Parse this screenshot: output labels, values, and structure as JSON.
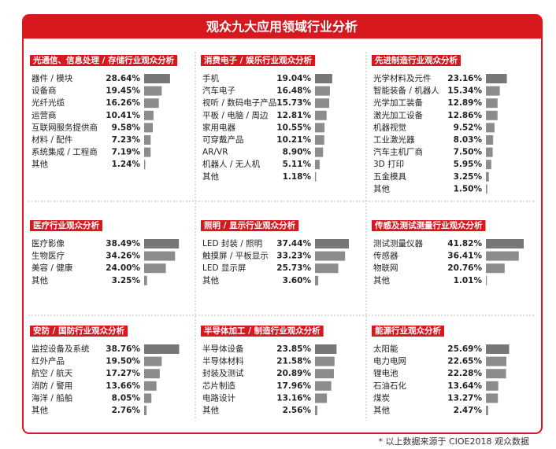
{
  "title": "观众九大应用领域行业分析",
  "note": "* 以上数据来源于 CIOE2018 观众数据",
  "chart_data": [
    {
      "type": "bar",
      "title": "光通信、信息处理 / 存储行业观众分析",
      "color": "#8c8c8c",
      "categories": [
        "器件 / 模块",
        "设备商",
        "光纤光缆",
        "运营商",
        "互联网服务提供商",
        "材料 / 配件",
        "系统集成 / 工程商",
        "其他"
      ],
      "values": [
        28.64,
        19.45,
        16.26,
        10.41,
        9.58,
        7.23,
        7.19,
        1.24
      ],
      "value_labels": [
        "28.64%",
        "19.45%",
        "16.26%",
        "10.41%",
        "9.58%",
        "7.23%",
        "7.19%",
        "1.24%"
      ]
    },
    {
      "type": "bar",
      "title": "消费电子 / 娱乐行业观众分析",
      "color": "#8c8c8c",
      "categories": [
        "手机",
        "汽车电子",
        "视听 / 数码电子产品",
        "平板 / 电脑 / 周边",
        "家用电器",
        "可穿戴产品",
        "AR/VR",
        "机器人 / 无人机",
        "其他"
      ],
      "values": [
        19.04,
        16.48,
        15.73,
        12.81,
        10.55,
        10.21,
        8.9,
        5.11,
        1.18
      ],
      "value_labels": [
        "19.04%",
        "16.48%",
        "15.73%",
        "12.81%",
        "10.55%",
        "10.21%",
        "8.90%",
        "5.11%",
        "1.18%"
      ]
    },
    {
      "type": "bar",
      "title": "先进制造行业观众分析",
      "color": "#8c8c8c",
      "categories": [
        "光学材料及元件",
        "智能装备 / 机器人",
        "光学加工装备",
        "激光加工设备",
        "机器视觉",
        "工业激光器",
        "汽车主机厂商",
        "3D 打印",
        "五金模具",
        "其他"
      ],
      "values": [
        23.16,
        15.34,
        12.89,
        12.86,
        9.52,
        8.03,
        7.5,
        5.95,
        3.25,
        1.5
      ],
      "value_labels": [
        "23.16%",
        "15.34%",
        "12.89%",
        "12.86%",
        "9.52%",
        "8.03%",
        "7.50%",
        "5.95%",
        "3.25%",
        "1.50%"
      ]
    },
    {
      "type": "bar",
      "title": "医疗行业观众分析",
      "color": "#8c8c8c",
      "categories": [
        "医疗影像",
        "生物医疗",
        "美容 / 健康",
        "其他"
      ],
      "values": [
        38.49,
        34.26,
        24.0,
        3.25
      ],
      "value_labels": [
        "38.49%",
        "34.26%",
        "24.00%",
        "3.25%"
      ]
    },
    {
      "type": "bar",
      "title": "照明 / 显示行业观众分析",
      "color": "#8c8c8c",
      "categories": [
        "LED 封装 / 照明",
        "触摸屏 / 平板显示",
        "LED 显示屏",
        "其他"
      ],
      "values": [
        37.44,
        33.23,
        25.73,
        3.6
      ],
      "value_labels": [
        "37.44%",
        "33.23%",
        "25.73%",
        "3.60%"
      ]
    },
    {
      "type": "bar",
      "title": "传感及测试测量行业观众分析",
      "color": "#8c8c8c",
      "categories": [
        "测试测量仪器",
        "传感器",
        "物联网",
        "其他"
      ],
      "values": [
        41.82,
        36.41,
        20.76,
        1.01
      ],
      "value_labels": [
        "41.82%",
        "36.41%",
        "20.76%",
        "1.01%"
      ]
    },
    {
      "type": "bar",
      "title": "安防 / 国防行业观众分析",
      "color": "#8c8c8c",
      "categories": [
        "监控设备及系统",
        "红外产品",
        "航空 / 航天",
        "消防 / 警用",
        "海洋 / 船舶",
        "其他"
      ],
      "values": [
        38.76,
        19.5,
        17.27,
        13.66,
        8.05,
        2.76
      ],
      "value_labels": [
        "38.76%",
        "19.50%",
        "17.27%",
        "13.66%",
        "8.05%",
        "2.76%"
      ]
    },
    {
      "type": "bar",
      "title": "半导体加工 / 制造行业观众分析",
      "color": "#8c8c8c",
      "categories": [
        "半导体设备",
        "半导体材料",
        "封装及测试",
        "芯片制造",
        "电路设计",
        "其他"
      ],
      "values": [
        23.85,
        21.58,
        20.89,
        17.96,
        13.16,
        2.56
      ],
      "value_labels": [
        "23.85%",
        "21.58%",
        "20.89%",
        "17.96%",
        "13.16%",
        "2.56%"
      ]
    },
    {
      "type": "bar",
      "title": "能源行业观众分析",
      "color": "#8c8c8c",
      "categories": [
        "太阳能",
        "电力电网",
        "锂电池",
        "石油石化",
        "煤炭",
        "其他"
      ],
      "values": [
        25.69,
        22.65,
        22.28,
        13.64,
        13.27,
        2.47
      ],
      "value_labels": [
        "25.69%",
        "22.65%",
        "22.28%",
        "13.64%",
        "13.27%",
        "2.47%"
      ]
    }
  ]
}
